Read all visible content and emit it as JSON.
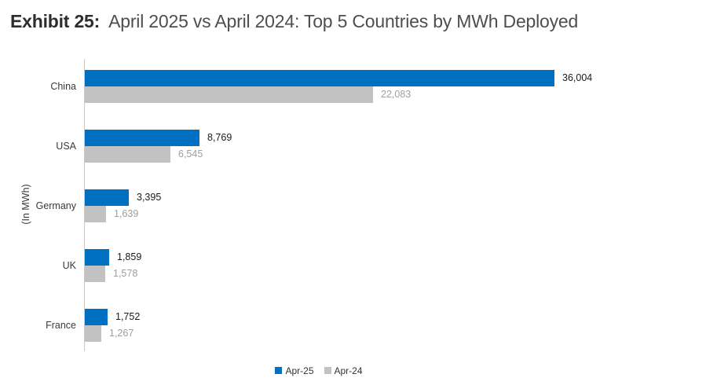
{
  "title": {
    "prefix": "Exhibit 25:",
    "text": "April 2025 vs April 2024: Top 5 Countries by MWh Deployed"
  },
  "chart_data": {
    "type": "bar",
    "orientation": "horizontal",
    "title": "April 2025 vs April 2024: Top 5 Countries by MWh Deployed",
    "ylabel": "(In MWh)",
    "xlabel": "",
    "categories": [
      "China",
      "USA",
      "Germany",
      "UK",
      "France"
    ],
    "series": [
      {
        "name": "Apr-25",
        "color": "#0071c2",
        "values": [
          36004,
          8769,
          3395,
          1859,
          1752
        ]
      },
      {
        "name": "Apr-24",
        "color": "#c2c2c2",
        "values": [
          22083,
          6545,
          1639,
          1578,
          1267
        ]
      }
    ],
    "xlim": [
      0,
      36004
    ],
    "grid": false,
    "legend_position": "bottom",
    "value_labels": true
  }
}
